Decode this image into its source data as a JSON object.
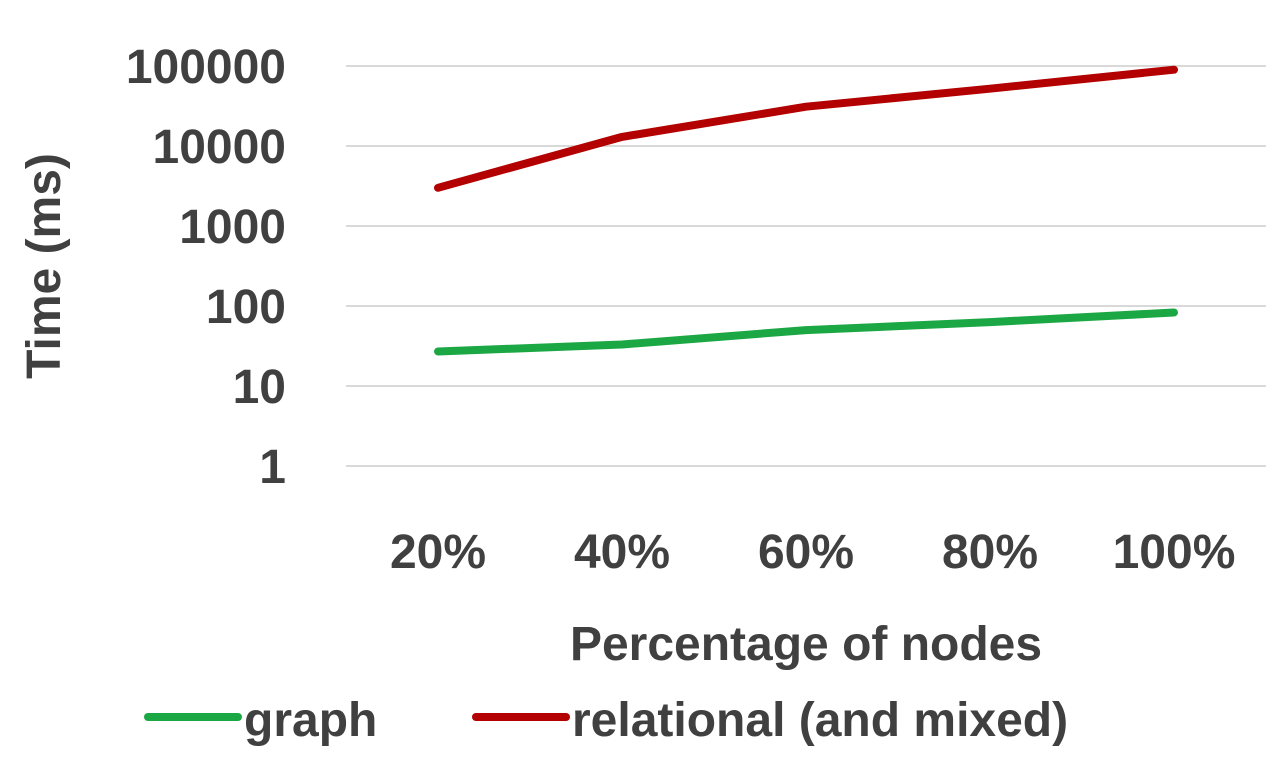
{
  "chart_data": {
    "type": "line",
    "title": "",
    "xlabel": "Percentage of nodes",
    "ylabel": "Time (ms)",
    "y_scale": "log",
    "ylim": [
      1,
      100000
    ],
    "y_ticks": [
      "1",
      "10",
      "100",
      "1000",
      "10000",
      "100000"
    ],
    "categories": [
      "20%",
      "40%",
      "60%",
      "80%",
      "100%"
    ],
    "grid": "horizontal",
    "legend_position": "bottom",
    "series": [
      {
        "name": "graph",
        "color": "#1ca745",
        "values": [
          27,
          33,
          50,
          63,
          83
        ]
      },
      {
        "name": "relational (and mixed)",
        "color": "#b30000",
        "values": [
          3000,
          13000,
          31000,
          52000,
          90000
        ]
      }
    ]
  }
}
